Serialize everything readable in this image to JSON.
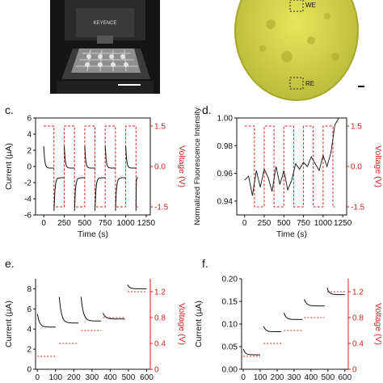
{
  "photo_a": {
    "brand_text": "KEYENCE"
  },
  "photo_b": {
    "we_label": "WE",
    "re_label": "RE"
  },
  "colors": {
    "current": "#111111",
    "voltage": "#cc2222",
    "yellow": "#d8d84a"
  },
  "panel_labels": {
    "c": "c.",
    "d": "d.",
    "e": "e.",
    "f": "f."
  },
  "chart_data": [
    {
      "panel": "c",
      "type": "line",
      "xlabel": "Time (s)",
      "ylabel": "Current (µA)",
      "y2label": "Voltage (V)",
      "xlim": [
        -100,
        1300
      ],
      "ylim": [
        -6,
        6
      ],
      "y2lim": [
        -1.8,
        1.8
      ],
      "xticks": [
        "0",
        "250",
        "500",
        "750",
        "1000",
        "1250"
      ],
      "yticks": [
        "-6",
        "-4",
        "-2",
        "0",
        "2",
        "4",
        "6"
      ],
      "y2ticks": [
        "-1.5",
        "0.0",
        "1.5"
      ],
      "series": [
        {
          "axis": "y2",
          "style": "dashed",
          "x": [
            0,
            125,
            125,
            250,
            250,
            375,
            375,
            500,
            500,
            625,
            625,
            750,
            750,
            875,
            875,
            1000,
            1000,
            1125,
            1125,
            1150
          ],
          "values": [
            1.5,
            1.5,
            -1.5,
            -1.5,
            1.5,
            1.5,
            -1.5,
            -1.5,
            1.5,
            1.5,
            -1.5,
            -1.5,
            1.5,
            1.5,
            -1.5,
            -1.5,
            1.5,
            1.5,
            -1.5,
            -1.5
          ]
        },
        {
          "axis": "y",
          "style": "solid",
          "steps": [
            0,
            125,
            250,
            375,
            500,
            625,
            750,
            875,
            1000,
            1125
          ],
          "step_end": 1150,
          "plateau": [
            -0.2,
            -1.4
          ],
          "spike": [
            2.5,
            -5.5
          ]
        }
      ]
    },
    {
      "panel": "d",
      "type": "line",
      "xlabel": "Time (s)",
      "ylabel": "Normalized Fluorescence Intensity",
      "y2label": "Voltage (V)",
      "xlim": [
        -100,
        1300
      ],
      "ylim": [
        0.93,
        1.0
      ],
      "y2lim": [
        -1.8,
        1.8
      ],
      "xticks": [
        "0",
        "250",
        "500",
        "750",
        "1000",
        "1250"
      ],
      "yticks": [
        "0.94",
        "0.96",
        "0.98",
        "1.00"
      ],
      "y2ticks": [
        "-1.5",
        "0.0",
        "1.5"
      ],
      "series": [
        {
          "axis": "y2",
          "style": "dashed",
          "x": [
            0,
            125,
            125,
            250,
            250,
            375,
            375,
            500,
            500,
            625,
            625,
            750,
            750,
            875,
            875,
            1000,
            1000,
            1125,
            1125,
            1150
          ],
          "values": [
            1.5,
            1.5,
            -1.5,
            -1.5,
            1.5,
            1.5,
            -1.5,
            -1.5,
            1.5,
            1.5,
            -1.5,
            -1.5,
            1.5,
            1.5,
            -1.5,
            -1.5,
            1.5,
            1.5,
            -1.5,
            -1.5
          ]
        },
        {
          "axis": "y",
          "style": "solid",
          "x": [
            0,
            50,
            100,
            150,
            200,
            250,
            300,
            350,
            400,
            450,
            500,
            550,
            600,
            650,
            700,
            750,
            800,
            850,
            900,
            950,
            1000,
            1050,
            1100,
            1150,
            1200
          ],
          "values": [
            0.955,
            0.958,
            0.944,
            0.962,
            0.95,
            0.963,
            0.957,
            0.947,
            0.965,
            0.952,
            0.962,
            0.948,
            0.955,
            0.967,
            0.963,
            0.968,
            0.965,
            0.972,
            0.967,
            0.962,
            0.973,
            0.965,
            0.975,
            0.995,
            1.0
          ]
        }
      ]
    },
    {
      "panel": "e",
      "type": "line",
      "xlabel": "",
      "ylabel": "Current (µA)",
      "y2label": "Voltage (V)",
      "xlim": [
        -10,
        620
      ],
      "ylim": [
        0,
        9
      ],
      "y2lim": [
        0,
        1.4
      ],
      "xticks": [
        "0",
        "100",
        "200",
        "300",
        "400",
        "500",
        "600"
      ],
      "yticks": [
        "0",
        "2",
        "4",
        "6",
        "8"
      ],
      "y2ticks": [
        "0",
        "0.4",
        "0.8",
        "1.2"
      ],
      "series": [
        {
          "axis": "y2",
          "style": "dashed",
          "segments": [
            [
              [
                0,
                0.2
              ],
              [
                100,
                0.2
              ]
            ],
            [
              [
                120,
                0.4
              ],
              [
                225,
                0.4
              ]
            ],
            [
              [
                240,
                0.6
              ],
              [
                350,
                0.6
              ]
            ],
            [
              [
                360,
                0.8
              ],
              [
                480,
                0.8
              ]
            ],
            [
              [
                495,
                1.2
              ],
              [
                600,
                1.2
              ]
            ]
          ]
        },
        {
          "axis": "y",
          "style": "solid",
          "steps": [
            [
              0,
              100,
              5.5,
              4.2
            ],
            [
              120,
              225,
              7.2,
              4.6
            ],
            [
              240,
              350,
              7.2,
              4.8
            ],
            [
              360,
              480,
              5.6,
              5.0
            ],
            [
              495,
              600,
              8.4,
              8.0
            ]
          ]
        }
      ]
    },
    {
      "panel": "f",
      "type": "line",
      "xlabel": "",
      "ylabel": "Current (µA)",
      "y2label": "Voltage (V)",
      "xlim": [
        -10,
        620
      ],
      "ylim": [
        0,
        0.2
      ],
      "y2lim": [
        0,
        1.4
      ],
      "xticks": [
        "0",
        "100",
        "200",
        "300",
        "400",
        "500",
        "600"
      ],
      "yticks": [
        "0.00",
        "0.05",
        "0.10",
        "0.15",
        "0.20"
      ],
      "y2ticks": [
        "0",
        "0.4",
        "0.8",
        "1.2"
      ],
      "series": [
        {
          "axis": "y2",
          "style": "dashed",
          "segments": [
            [
              [
                0,
                0.2
              ],
              [
                100,
                0.2
              ]
            ],
            [
              [
                120,
                0.4
              ],
              [
                225,
                0.4
              ]
            ],
            [
              [
                240,
                0.6
              ],
              [
                350,
                0.6
              ]
            ],
            [
              [
                360,
                0.8
              ],
              [
                480,
                0.8
              ]
            ],
            [
              [
                495,
                1.2
              ],
              [
                600,
                1.2
              ]
            ]
          ]
        },
        {
          "axis": "y",
          "style": "solid",
          "steps": [
            [
              0,
              100,
              0.045,
              0.032
            ],
            [
              120,
              225,
              0.095,
              0.083
            ],
            [
              240,
              350,
              0.125,
              0.11
            ],
            [
              360,
              480,
              0.155,
              0.14
            ],
            [
              495,
              600,
              0.18,
              0.165
            ]
          ]
        }
      ]
    }
  ]
}
